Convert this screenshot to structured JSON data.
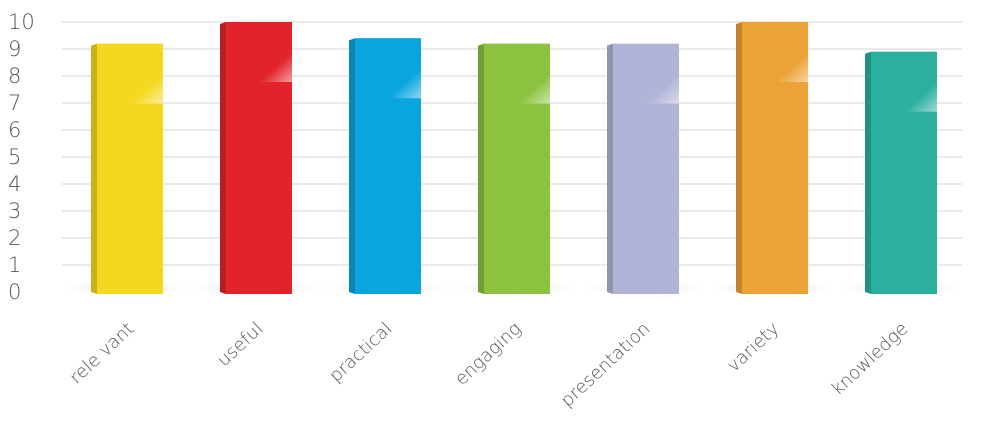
{
  "chart_data": {
    "type": "bar",
    "title": "",
    "xlabel": "",
    "ylabel": "",
    "ylim": [
      0,
      10
    ],
    "yticks": [
      "0",
      "1",
      "2",
      "3",
      "4",
      "5",
      "6",
      "7",
      "8",
      "9",
      "10"
    ],
    "grid": true,
    "legend": "none",
    "categories": [
      "rele vant",
      "useful",
      "practical",
      "engaging",
      "presentation",
      "variety",
      "knowledge"
    ],
    "values": [
      9.2,
      10,
      9.4,
      9.2,
      9.2,
      10,
      8.9
    ],
    "colors": [
      "#f4d820",
      "#e3232c",
      "#0aa5df",
      "#8cc23f",
      "#b1b4d6",
      "#eca235",
      "#2bb0a0"
    ]
  }
}
